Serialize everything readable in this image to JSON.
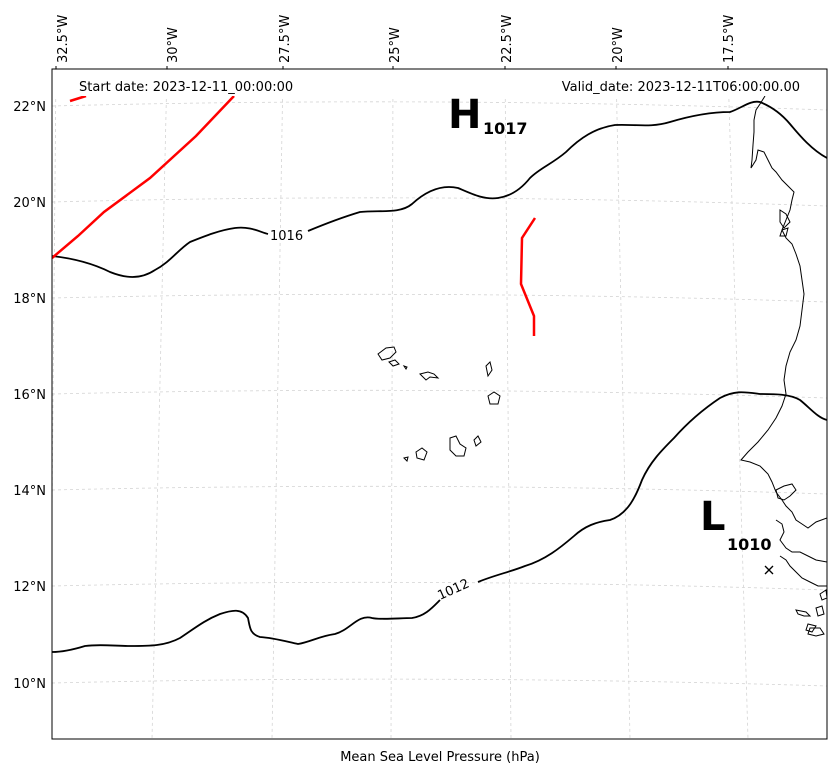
{
  "header": {
    "start_date": "Start date: 2023-12-11_00:00:00",
    "valid_date": "Valid_date: 2023-12-11T06:00:00.00"
  },
  "footer": {
    "caption": "Mean Sea Level Pressure (hPa)"
  },
  "longitude_labels": [
    "32.5°W",
    "30°W",
    "27.5°W",
    "25°W",
    "22.5°W",
    "20°W",
    "17.5°W"
  ],
  "latitude_labels": [
    "22°N",
    "20°N",
    "18°N",
    "16°N",
    "14°N",
    "12°N",
    "10°N"
  ],
  "isobar_labels": [
    "1016",
    "1012"
  ],
  "pressure_centers": {
    "high": {
      "symbol": "H",
      "value": "1017"
    },
    "low": {
      "symbol": "L",
      "value": "1010"
    }
  },
  "colors": {
    "isobar": "#000000",
    "trough": "#ff0000",
    "grid": "#cccccc",
    "coastline": "#000000"
  },
  "features": {
    "grid": true,
    "coastline": "West Africa and Cape Verde islands",
    "marker": "x"
  }
}
